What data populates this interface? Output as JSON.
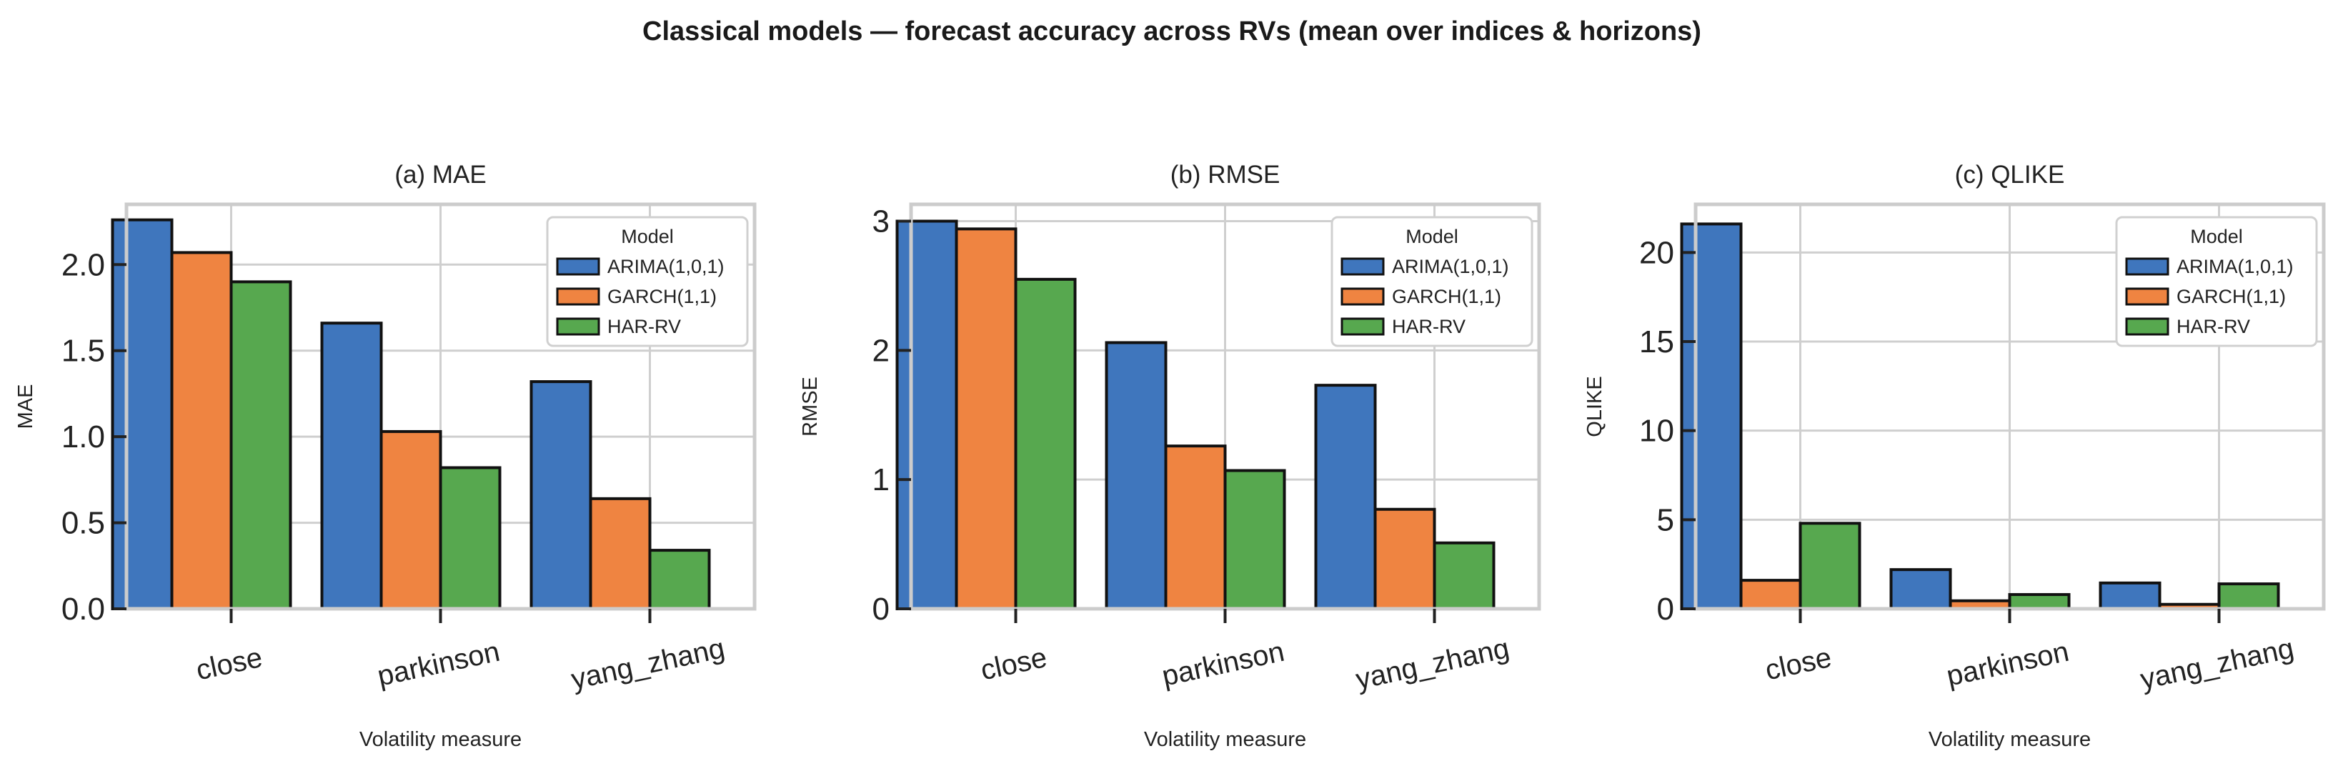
{
  "chart_data": {
    "title": "Classical models — forecast accuracy across RVs (mean over indices & horizons)",
    "type": "bar",
    "legend": {
      "title": "Model",
      "placement": "upper right",
      "entries": [
        "ARIMA(1,0,1)",
        "GARCH(1,1)",
        "HAR-RV"
      ]
    },
    "series_colors": [
      "#3f76bd",
      "#ef8441",
      "#57a84f"
    ],
    "categories": [
      "close",
      "parkinson",
      "yang_zhang"
    ],
    "xlabel": "Volatility measure",
    "panels": [
      {
        "title": "(a) MAE",
        "ylabel": "MAE",
        "ylim": [
          0,
          2.35
        ],
        "yticks": [
          0.0,
          0.5,
          1.0,
          1.5,
          2.0
        ],
        "ytick_labels": [
          "0.0",
          "0.5",
          "1.0",
          "1.5",
          "2.0"
        ],
        "series": [
          {
            "name": "ARIMA(1,0,1)",
            "values": [
              2.26,
              1.66,
              1.32
            ]
          },
          {
            "name": "GARCH(1,1)",
            "values": [
              2.07,
              1.03,
              0.64
            ]
          },
          {
            "name": "HAR-RV",
            "values": [
              1.9,
              0.82,
              0.34
            ]
          }
        ]
      },
      {
        "title": "(b) RMSE",
        "ylabel": "RMSE",
        "ylim": [
          0,
          3.13
        ],
        "yticks": [
          0,
          1,
          2,
          3
        ],
        "ytick_labels": [
          "0",
          "1",
          "2",
          "3"
        ],
        "series": [
          {
            "name": "ARIMA(1,0,1)",
            "values": [
              3.0,
              2.06,
              1.73
            ]
          },
          {
            "name": "GARCH(1,1)",
            "values": [
              2.94,
              1.26,
              0.77
            ]
          },
          {
            "name": "HAR-RV",
            "values": [
              2.55,
              1.07,
              0.51
            ]
          }
        ]
      },
      {
        "title": "(c) QLIKE",
        "ylabel": "QLIKE",
        "ylim": [
          0,
          22.7
        ],
        "yticks": [
          0,
          5,
          10,
          15,
          20
        ],
        "ytick_labels": [
          "0",
          "5",
          "10",
          "15",
          "20"
        ],
        "series": [
          {
            "name": "ARIMA(1,0,1)",
            "values": [
              21.6,
              2.2,
              1.45
            ]
          },
          {
            "name": "GARCH(1,1)",
            "values": [
              1.6,
              0.45,
              0.25
            ]
          },
          {
            "name": "HAR-RV",
            "values": [
              4.8,
              0.8,
              1.4
            ]
          }
        ]
      }
    ]
  }
}
